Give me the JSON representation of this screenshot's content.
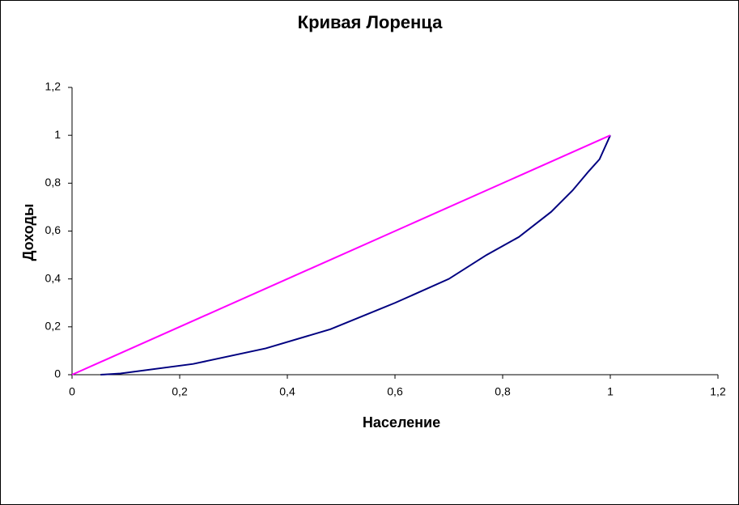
{
  "chart_data": {
    "type": "line",
    "title": "Кривая Лоренца",
    "xlabel": "Население",
    "ylabel": "Доходы",
    "series": [
      {
        "color": "#000080",
        "x": [
          0.053,
          0.09,
          0.225,
          0.36,
          0.48,
          0.6,
          0.7,
          0.77,
          0.83,
          0.89,
          0.93,
          0.96,
          0.98,
          1
        ],
        "values": [
          0,
          0.005,
          0.045,
          0.11,
          0.19,
          0.3,
          0.4,
          0.5,
          0.575,
          0.68,
          0.77,
          0.85,
          0.9,
          1
        ]
      },
      {
        "color": "#ff00ff",
        "x": [
          0,
          1
        ],
        "values": [
          0,
          1
        ]
      }
    ],
    "xlim": [
      0,
      1.2
    ],
    "ylim": [
      0,
      1.2
    ],
    "xticks": [
      0,
      {
        "value": 0.2,
        "label": "0,2"
      },
      {
        "value": 0.4,
        "label": "0,4"
      },
      {
        "value": 0.6,
        "label": "0,6"
      },
      {
        "value": 0.8,
        "label": "0,8"
      },
      1,
      {
        "value": 1.2,
        "label": "1,2"
      }
    ],
    "yticks": [
      0,
      {
        "value": 0.2,
        "label": "0,2"
      },
      {
        "value": 0.4,
        "label": "0,4"
      },
      {
        "value": 0.6,
        "label": "0,6"
      },
      {
        "value": 0.8,
        "label": "0,8"
      },
      1,
      {
        "value": 1.2,
        "label": "1,2"
      }
    ],
    "grid": false
  }
}
